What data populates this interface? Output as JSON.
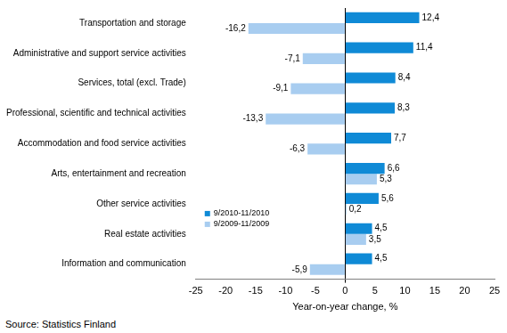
{
  "chart_data": {
    "type": "bar",
    "orientation": "horizontal",
    "categories": [
      "Transportation and storage",
      "Administrative and support service activities",
      "Services, total (excl. Trade)",
      "Professional, scientific and technical activities",
      "Accommodation and food service activities",
      "Arts, entertainment and recreation",
      "Other service activities",
      "Real estate activities",
      "Information and communication"
    ],
    "series": [
      {
        "name": "9/2010-11/2010",
        "color": "#0f8ad6",
        "values": [
          12.4,
          11.4,
          8.4,
          8.3,
          7.7,
          6.6,
          5.6,
          4.5,
          4.5
        ],
        "value_labels": [
          "12,4",
          "11,4",
          "8,4",
          "8,3",
          "7,7",
          "6,6",
          "5,6",
          "4,5",
          "4,5"
        ]
      },
      {
        "name": "9/2009-11/2009",
        "color": "#a8cdf0",
        "values": [
          -16.2,
          -7.1,
          -9.1,
          -13.3,
          -6.3,
          5.3,
          0.2,
          3.5,
          -5.9
        ],
        "value_labels": [
          "-16,2",
          "-7,1",
          "-9,1",
          "-13,3",
          "-6,3",
          "5,3",
          "0,2",
          "3,5",
          "-5,9"
        ]
      }
    ],
    "xlabel": "Year-on-year change, %",
    "xlim": [
      -25,
      25
    ],
    "xticks": [
      -25,
      -20,
      -15,
      -10,
      -5,
      0,
      5,
      10,
      15,
      20,
      25
    ],
    "grid": false,
    "legend": "left",
    "data_labels": true,
    "source": "Source: Statistics Finland"
  }
}
